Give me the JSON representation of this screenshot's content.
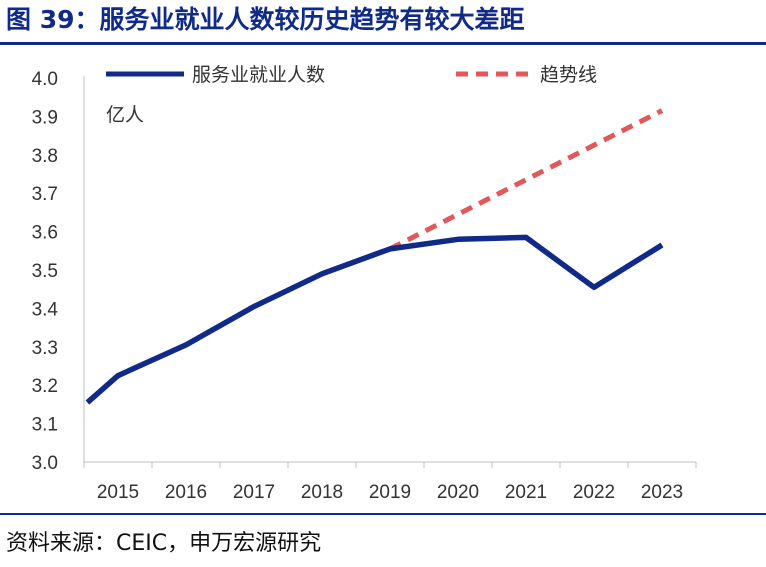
{
  "title": "图 39：服务业就业人数较历史趋势有较大差距",
  "source": "资料来源：CEIC，申万宏源研究",
  "chart_data": {
    "type": "line",
    "x": [
      "2015",
      "2016",
      "2017",
      "2018",
      "2019",
      "2020",
      "2021",
      "2022",
      "2023"
    ],
    "ylim": [
      3.0,
      4.0
    ],
    "yticks": [
      "3.0",
      "3.1",
      "3.2",
      "3.3",
      "3.4",
      "3.5",
      "3.6",
      "3.7",
      "3.8",
      "3.9",
      "4.0"
    ],
    "unit_label": "亿人",
    "legend_position": "top",
    "grid": false,
    "series": [
      {
        "name": "服务业就业人数",
        "style": "solid",
        "color": "#0f2a88",
        "points": [
          {
            "x": 2014.05,
            "y": 3.155
          },
          {
            "x": 2014.5,
            "y": 3.225
          },
          {
            "x": 2015.5,
            "y": 3.305
          },
          {
            "x": 2016.5,
            "y": 3.405
          },
          {
            "x": 2017.5,
            "y": 3.49
          },
          {
            "x": 2018.5,
            "y": 3.555
          },
          {
            "x": 2019.5,
            "y": 3.58
          },
          {
            "x": 2020.5,
            "y": 3.585
          },
          {
            "x": 2021.5,
            "y": 3.455
          },
          {
            "x": 2022.5,
            "y": 3.565
          }
        ]
      },
      {
        "name": "趋势线",
        "style": "dashed",
        "color": "#e0585a",
        "points": [
          {
            "x": 2018.5,
            "y": 3.555
          },
          {
            "x": 2022.5,
            "y": 3.915
          }
        ]
      }
    ]
  }
}
